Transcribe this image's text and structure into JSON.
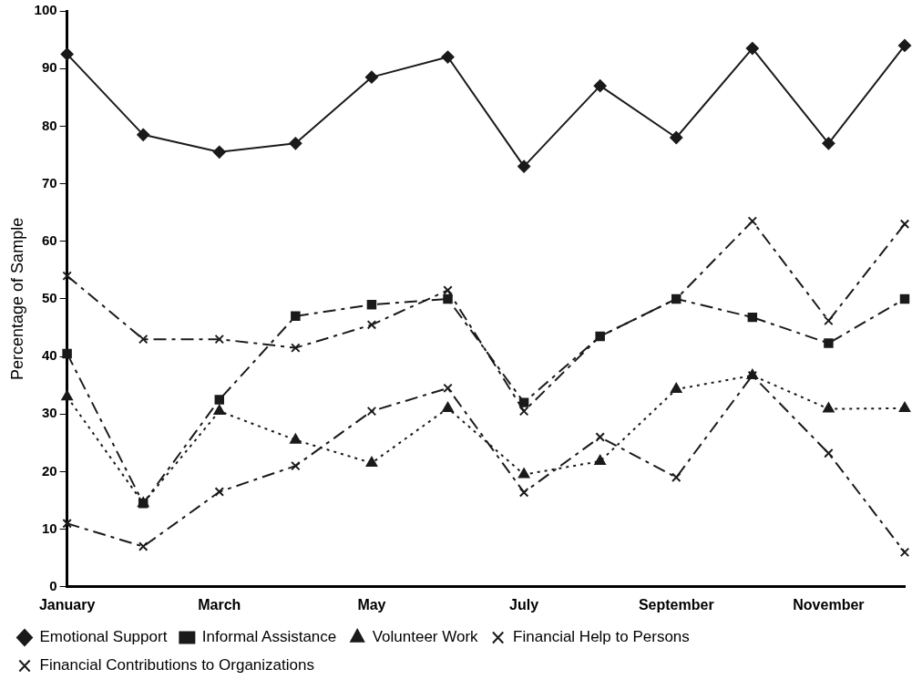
{
  "chart_data": {
    "type": "line",
    "ylabel": "Percentage of Sample",
    "categories": [
      "January",
      null,
      "March",
      null,
      "May",
      null,
      "July",
      null,
      "September",
      null,
      "November",
      null
    ],
    "ylim": [
      0,
      100
    ],
    "yticks": [
      0,
      10,
      20,
      30,
      40,
      50,
      60,
      70,
      80,
      90,
      100
    ],
    "grid": false,
    "legend": "bottom",
    "series": [
      {
        "name": "Emotional Support",
        "color": "#1a1a1a",
        "marker": "diamond",
        "line_style": "solid",
        "values": [
          92.5,
          78.5,
          75.5,
          77,
          88.5,
          92,
          73,
          87,
          78,
          93.5,
          77,
          94
        ]
      },
      {
        "name": "Informal Assistance",
        "color": "#1a1a1a",
        "marker": "square",
        "line_style": "dashed",
        "values": [
          40.5,
          14.5,
          32.5,
          47,
          49,
          50,
          32,
          43.5,
          50,
          46.8,
          42.3,
          50
        ]
      },
      {
        "name": "Volunteer Work",
        "color": "#1a1a1a",
        "marker": "triangle",
        "line_style": "dotted",
        "values": [
          33,
          14.5,
          30.5,
          25.5,
          21.5,
          31,
          19.5,
          21.8,
          34.3,
          36.7,
          30.9,
          31
        ]
      },
      {
        "name": "Financial Help to Persons",
        "color": "#1a1a1a",
        "marker": "cross",
        "line_style": "dashed",
        "values": [
          11,
          7,
          16.5,
          21,
          30.5,
          34.5,
          16.4,
          26,
          19,
          36.7,
          23.2,
          6
        ]
      },
      {
        "name": "Financial Contributions to Organizations",
        "color": "#1a1a1a",
        "marker": "cross",
        "line_style": "dashed",
        "values": [
          54,
          43,
          43,
          41.5,
          45.5,
          51.5,
          30.5,
          43.5,
          50,
          63.5,
          46.2,
          63
        ]
      }
    ]
  }
}
